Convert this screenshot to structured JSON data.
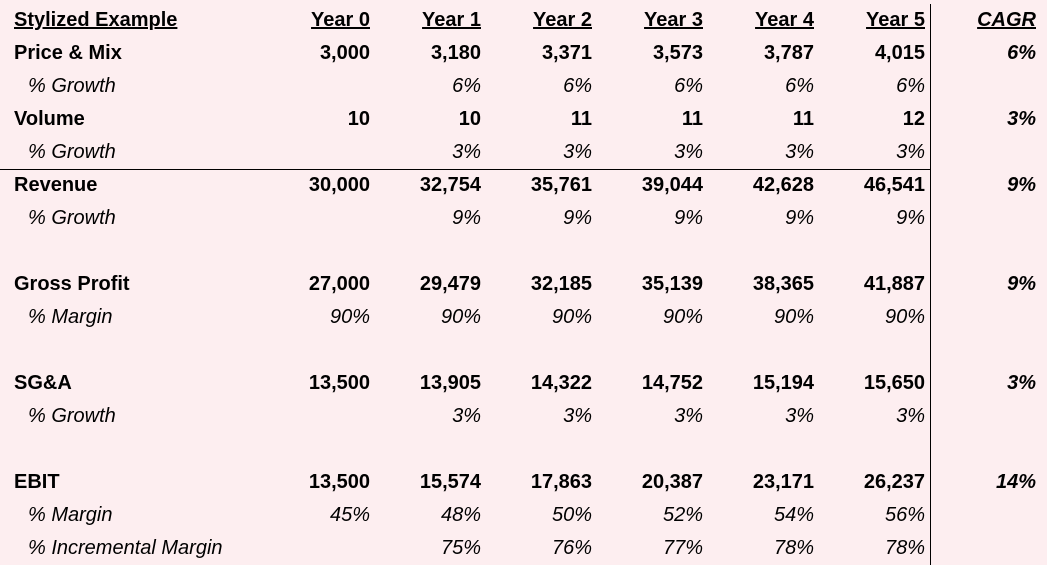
{
  "header": {
    "title": "Stylized Example",
    "years": [
      "Year 0",
      "Year 1",
      "Year 2",
      "Year 3",
      "Year 4",
      "Year 5"
    ],
    "cagr": "CAGR"
  },
  "price_mix": {
    "label": "Price & Mix",
    "values": [
      "3,000",
      "3,180",
      "3,371",
      "3,573",
      "3,787",
      "4,015"
    ],
    "cagr": "6%",
    "growth_label": "% Growth",
    "growth": [
      "",
      "6%",
      "6%",
      "6%",
      "6%",
      "6%"
    ]
  },
  "volume": {
    "label": "Volume",
    "values": [
      "10",
      "10",
      "11",
      "11",
      "11",
      "12"
    ],
    "cagr": "3%",
    "growth_label": "% Growth",
    "growth": [
      "",
      "3%",
      "3%",
      "3%",
      "3%",
      "3%"
    ]
  },
  "revenue": {
    "label": "Revenue",
    "values": [
      "30,000",
      "32,754",
      "35,761",
      "39,044",
      "42,628",
      "46,541"
    ],
    "cagr": "9%",
    "growth_label": "% Growth",
    "growth": [
      "",
      "9%",
      "9%",
      "9%",
      "9%",
      "9%"
    ]
  },
  "gross_profit": {
    "label": "Gross Profit",
    "values": [
      "27,000",
      "29,479",
      "32,185",
      "35,139",
      "38,365",
      "41,887"
    ],
    "cagr": "9%",
    "margin_label": "% Margin",
    "margin": [
      "90%",
      "90%",
      "90%",
      "90%",
      "90%",
      "90%"
    ]
  },
  "sga": {
    "label": "SG&A",
    "values": [
      "13,500",
      "13,905",
      "14,322",
      "14,752",
      "15,194",
      "15,650"
    ],
    "cagr": "3%",
    "growth_label": "% Growth",
    "growth": [
      "",
      "3%",
      "3%",
      "3%",
      "3%",
      "3%"
    ]
  },
  "ebit": {
    "label": "EBIT",
    "values": [
      "13,500",
      "15,574",
      "17,863",
      "20,387",
      "23,171",
      "26,237"
    ],
    "cagr": "14%",
    "margin_label": "% Margin",
    "margin": [
      "45%",
      "48%",
      "50%",
      "52%",
      "54%",
      "56%"
    ],
    "incremental_label": "% Incremental Margin",
    "incremental": [
      "",
      "75%",
      "76%",
      "77%",
      "78%",
      "78%"
    ]
  }
}
